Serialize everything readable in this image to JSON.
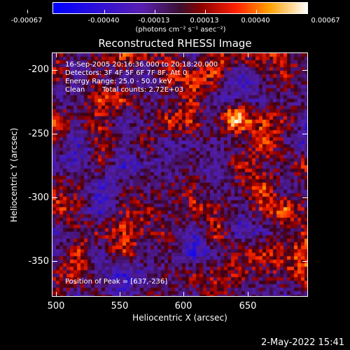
{
  "colorbar": {
    "labels": [
      "-0.00067",
      "-0.00040",
      "-0.00013",
      "0.00013",
      "0.00040",
      "0.00067"
    ],
    "units": "(photons cm⁻² s⁻¹ asec⁻²)"
  },
  "plot": {
    "title": "Reconstructed RHESSI Image",
    "xlabel": "Heliocentric X (arcsec)",
    "ylabel": "Heliocentric Y (arcsec)",
    "xticks": [
      "500",
      "550",
      "600",
      "650"
    ],
    "yticks": [
      "-200",
      "-250",
      "-300",
      "-350"
    ]
  },
  "info": {
    "time_range": "16-Sep-2005 20:16:36.000 to 20:18:20.000",
    "detectors": "Detectors: 3F 4F 5F 6F 7F 8F, Att 0",
    "energy": "Energy Range: 25.0 - 50.0 keV",
    "algorithm": "Clean",
    "counts": "Total counts: 2.72E+03",
    "peak": "Position of Peak = [637,-236]"
  },
  "datestamp": "2-May-2022 15:41"
}
